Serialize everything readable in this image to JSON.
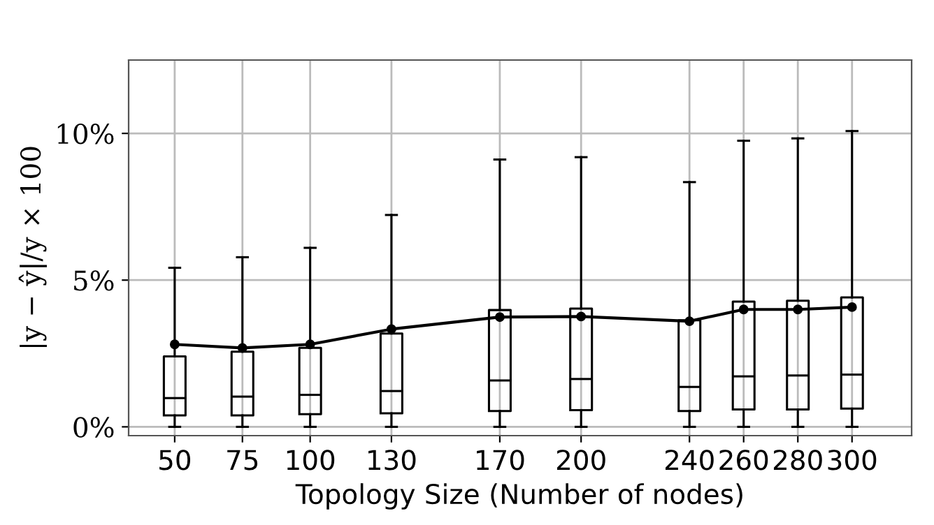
{
  "chart_data": {
    "type": "box",
    "xlabel": "Topology Size (Number of nodes)",
    "ylabel": "|y − ŷ|/y × 100",
    "x": [
      50,
      75,
      100,
      130,
      170,
      200,
      240,
      260,
      280,
      300
    ],
    "boxes": [
      {
        "low": 0,
        "q1": 0.39,
        "median": 0.98,
        "q3": 2.4,
        "high": 5.42
      },
      {
        "low": 0,
        "q1": 0.39,
        "median": 1.03,
        "q3": 2.56,
        "high": 5.78
      },
      {
        "low": 0,
        "q1": 0.43,
        "median": 1.09,
        "q3": 2.69,
        "high": 6.1
      },
      {
        "low": 0,
        "q1": 0.46,
        "median": 1.22,
        "q3": 3.18,
        "high": 7.22
      },
      {
        "low": 0,
        "q1": 0.54,
        "median": 1.58,
        "q3": 3.98,
        "high": 9.11
      },
      {
        "low": 0,
        "q1": 0.57,
        "median": 1.63,
        "q3": 4.03,
        "high": 9.19
      },
      {
        "low": 0,
        "q1": 0.54,
        "median": 1.36,
        "q3": 3.63,
        "high": 8.34
      },
      {
        "low": 0,
        "q1": 0.59,
        "median": 1.72,
        "q3": 4.27,
        "high": 9.75
      },
      {
        "low": 0,
        "q1": 0.59,
        "median": 1.75,
        "q3": 4.3,
        "high": 9.83
      },
      {
        "low": 0,
        "q1": 0.62,
        "median": 1.78,
        "q3": 4.41,
        "high": 10.08
      }
    ],
    "series": [
      {
        "type": "line",
        "color": "#000000",
        "marker": "circle",
        "values": [
          2.81,
          2.69,
          2.81,
          3.33,
          3.74,
          3.76,
          3.6,
          4.0,
          4.0,
          4.08
        ]
      }
    ],
    "xlim": [
      33,
      322
    ],
    "ylim": [
      -0.3,
      12.5
    ],
    "xticks": [
      50,
      75,
      100,
      130,
      170,
      200,
      240,
      260,
      280,
      300
    ],
    "yticks": [
      {
        "value": 0,
        "label": "0%"
      },
      {
        "value": 5,
        "label": "5%"
      },
      {
        "value": 10,
        "label": "10%"
      }
    ],
    "grid": true
  }
}
